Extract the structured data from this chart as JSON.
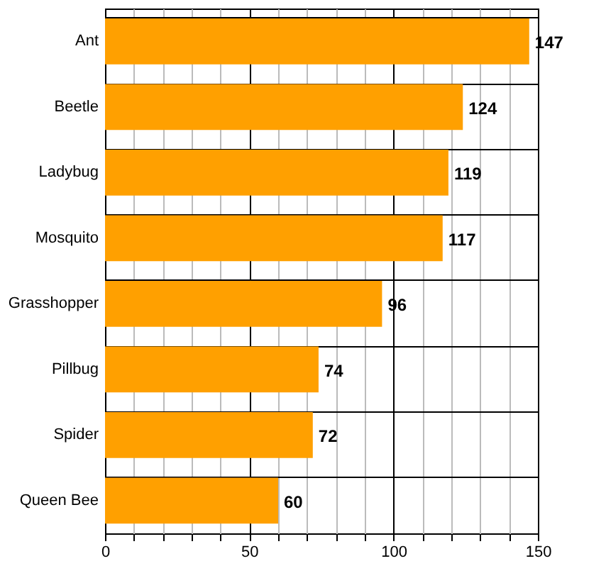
{
  "chart_data": {
    "type": "bar",
    "orientation": "horizontal",
    "categories": [
      "Ant",
      "Beetle",
      "Ladybug",
      "Mosquito",
      "Grasshopper",
      "Pillbug",
      "Spider",
      "Queen Bee"
    ],
    "values": [
      147,
      124,
      119,
      117,
      96,
      74,
      72,
      60
    ],
    "color": "#ffa000",
    "xlim": [
      0,
      150
    ],
    "xticks": [
      0,
      {
        "value": 10,
        "label": null
      },
      {
        "value": 20,
        "label": null
      },
      {
        "value": 30,
        "label": null
      },
      {
        "value": 40,
        "label": null
      },
      50,
      {
        "value": 60,
        "label": null
      },
      {
        "value": 70,
        "label": null
      },
      {
        "value": 80,
        "label": null
      },
      {
        "value": 90,
        "label": null
      },
      100,
      {
        "value": 110,
        "label": null
      },
      {
        "value": 120,
        "label": null
      },
      {
        "value": 130,
        "label": null
      },
      {
        "value": 140,
        "label": null
      },
      150
    ],
    "grid": true,
    "data_labels": true
  }
}
